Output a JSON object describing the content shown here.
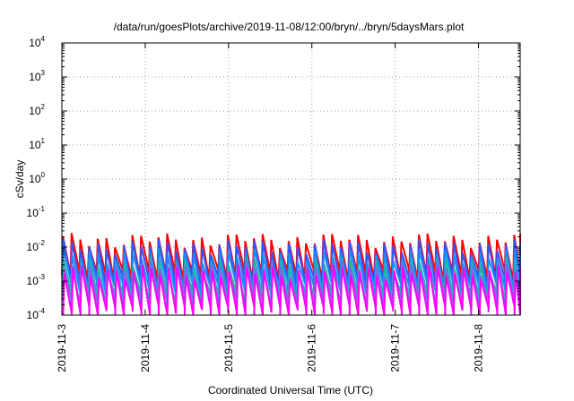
{
  "chart_data": {
    "type": "line",
    "title": "/data/run/goesPlots/archive/2019-11-08/12:00/bryn/../bryn/5daysMars.plot",
    "xlabel": "Coordinated Universal Time (UTC)",
    "ylabel": "cSv/day",
    "yscale": "log",
    "ylim": [
      0.0001,
      10000
    ],
    "y_ticks": [
      {
        "base": "10",
        "exp": "4",
        "value": 10000
      },
      {
        "base": "10",
        "exp": "3",
        "value": 1000
      },
      {
        "base": "10",
        "exp": "2",
        "value": 100
      },
      {
        "base": "10",
        "exp": "1",
        "value": 10
      },
      {
        "base": "10",
        "exp": "0",
        "value": 1
      },
      {
        "base": "10",
        "exp": "-1",
        "value": 0.1
      },
      {
        "base": "10",
        "exp": "-2",
        "value": 0.01
      },
      {
        "base": "10",
        "exp": "-3",
        "value": 0.001
      },
      {
        "base": "10",
        "exp": "-4",
        "value": 0.0001
      }
    ],
    "xlim": [
      "2019-11-03T00:00",
      "2019-11-08T12:00"
    ],
    "x_ticks": [
      {
        "label": "2019-11-3",
        "date": "2019-11-03"
      },
      {
        "label": "2019-11-4",
        "date": "2019-11-04"
      },
      {
        "label": "2019-11-5",
        "date": "2019-11-05"
      },
      {
        "label": "2019-11-6",
        "date": "2019-11-06"
      },
      {
        "label": "2019-11-7",
        "date": "2019-11-07"
      },
      {
        "label": "2019-11-8",
        "date": "2019-11-08"
      }
    ],
    "grid": true,
    "legend": "none",
    "pattern": "sawtooth, period about 2.5 hours",
    "series": [
      {
        "color": "#ff0000",
        "peak": 0.017,
        "trough": 0.0015
      },
      {
        "color": "#3355ff",
        "peak": 0.011,
        "trough": 0.0009
      },
      {
        "color": "#1a8cff",
        "peak": 0.006,
        "trough": 0.0006
      },
      {
        "color": "#20b2aa",
        "peak": 0.0035,
        "trough": 0.0003
      },
      {
        "color": "#7b68ee",
        "peak": 0.0025,
        "trough": 0.00022
      },
      {
        "color": "#ff00ff",
        "peak": 0.002,
        "trough": 0.00012
      }
    ]
  }
}
